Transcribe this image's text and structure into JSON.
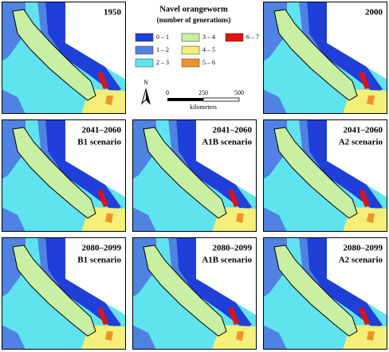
{
  "title": "Navel orangeworm",
  "subtitle": "(number of generations)",
  "legend": [
    {
      "label": "0 – 1",
      "color": "#1f3fd8"
    },
    {
      "label": "1 – 2",
      "color": "#4f82e2"
    },
    {
      "label": "2 – 3",
      "color": "#5fe3ef"
    },
    {
      "label": "3 – 4",
      "color": "#c8efa2"
    },
    {
      "label": "4 – 5",
      "color": "#f3ef78"
    },
    {
      "label": "5 – 6",
      "color": "#ef9329"
    },
    {
      "label": "6 – 7",
      "color": "#e0130f"
    }
  ],
  "north": "N",
  "scale": {
    "ticks": [
      "0",
      "250",
      "500"
    ],
    "unit": "kilometers"
  },
  "panels": [
    {
      "lines": [
        "1950"
      ]
    },
    {
      "lines": [
        "2000"
      ]
    },
    {
      "lines": [
        "2041–2060",
        "B1 scenario"
      ]
    },
    {
      "lines": [
        "2041–2060",
        "A1B scenario"
      ]
    },
    {
      "lines": [
        "2041–2060",
        "A2 scenario"
      ]
    },
    {
      "lines": [
        "2080–2099",
        "B1 scenario"
      ]
    },
    {
      "lines": [
        "2080–2099",
        "A1B scenario"
      ]
    },
    {
      "lines": [
        "2080–2099",
        "A2 scenario"
      ]
    }
  ]
}
